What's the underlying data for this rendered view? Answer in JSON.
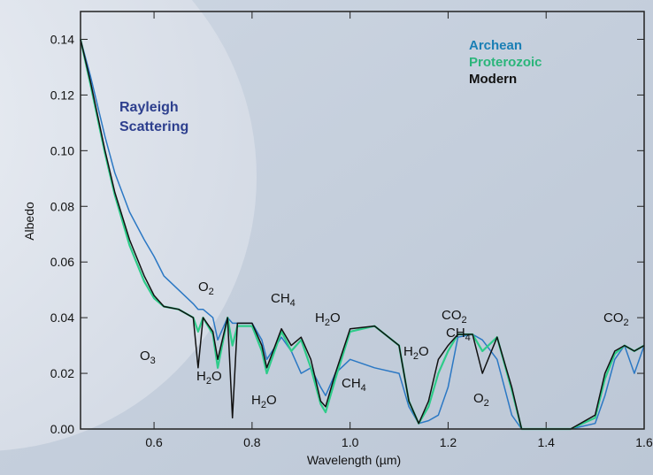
{
  "chart_data": {
    "type": "line",
    "x_label": "Wavelength (µm)",
    "y_label": "Albedo",
    "xlim": [
      0.45,
      1.6
    ],
    "ylim": [
      0,
      0.15
    ],
    "xticks": [
      0.6,
      0.8,
      {
        "value": 1,
        "label": "1.0"
      },
      1.2,
      1.4,
      1.6
    ],
    "yticks": [
      {
        "value": 0,
        "label": "0.00"
      },
      {
        "value": 0.02,
        "label": "0.02"
      },
      {
        "value": 0.04,
        "label": "0.04"
      },
      {
        "value": 0.06,
        "label": "0.06"
      },
      {
        "value": 0.08,
        "label": "0.08"
      },
      {
        "value": 0.1,
        "label": "0.10"
      },
      {
        "value": 0.12,
        "label": "0.12"
      },
      {
        "value": 0.14,
        "label": "0.14"
      }
    ],
    "legend_position": "upper right",
    "x": [
      0.45,
      0.47,
      0.5,
      0.52,
      0.55,
      0.58,
      0.6,
      0.62,
      0.65,
      0.68,
      0.69,
      0.7,
      0.72,
      0.73,
      0.75,
      0.76,
      0.77,
      0.8,
      0.82,
      0.83,
      0.86,
      0.88,
      0.9,
      0.92,
      0.94,
      0.95,
      0.97,
      1.0,
      1.05,
      1.1,
      1.12,
      1.14,
      1.16,
      1.18,
      1.2,
      1.22,
      1.25,
      1.27,
      1.3,
      1.33,
      1.35,
      1.4,
      1.45,
      1.5,
      1.52,
      1.54,
      1.56,
      1.58,
      1.6
    ],
    "series": [
      {
        "name": "Archean",
        "color": "#2b78c4",
        "label_color": "#1a7fb5",
        "values": [
          0.14,
          0.127,
          0.105,
          0.092,
          0.078,
          0.068,
          0.062,
          0.055,
          0.05,
          0.045,
          0.043,
          0.043,
          0.04,
          0.032,
          0.04,
          0.038,
          0.038,
          0.038,
          0.032,
          0.025,
          0.033,
          0.028,
          0.02,
          0.022,
          0.015,
          0.012,
          0.02,
          0.025,
          0.022,
          0.02,
          0.008,
          0.002,
          0.003,
          0.005,
          0.015,
          0.033,
          0.034,
          0.032,
          0.025,
          0.005,
          0,
          0,
          0,
          0.002,
          0.012,
          0.025,
          0.03,
          0.02,
          0.03
        ]
      },
      {
        "name": "Proterozoic",
        "color": "#2ecc8a",
        "label_color": "#2bb57a",
        "values": [
          0.14,
          0.124,
          0.099,
          0.084,
          0.066,
          0.053,
          0.047,
          0.044,
          0.043,
          0.04,
          0.035,
          0.04,
          0.034,
          0.022,
          0.04,
          0.03,
          0.037,
          0.037,
          0.028,
          0.02,
          0.035,
          0.028,
          0.032,
          0.022,
          0.009,
          0.006,
          0.018,
          0.035,
          0.037,
          0.03,
          0.01,
          0.002,
          0.008,
          0.02,
          0.028,
          0.034,
          0.034,
          0.028,
          0.033,
          0.014,
          0,
          0,
          0,
          0.004,
          0.018,
          0.027,
          0.03,
          0.028,
          0.03
        ]
      },
      {
        "name": "Modern",
        "color": "#111111",
        "label_color": "#111111",
        "values": [
          0.14,
          0.125,
          0.1,
          0.085,
          0.068,
          0.055,
          0.048,
          0.044,
          0.043,
          0.04,
          0.022,
          0.04,
          0.035,
          0.025,
          0.04,
          0.004,
          0.038,
          0.038,
          0.03,
          0.022,
          0.036,
          0.03,
          0.033,
          0.025,
          0.01,
          0.008,
          0.02,
          0.036,
          0.037,
          0.03,
          0.01,
          0.002,
          0.01,
          0.025,
          0.03,
          0.034,
          0.034,
          0.02,
          0.033,
          0.015,
          0,
          0,
          0,
          0.005,
          0.02,
          0.028,
          0.03,
          0.028,
          0.03
        ]
      }
    ],
    "rayleigh_label": [
      "Rayleigh",
      "Scattering"
    ],
    "annotations": [
      {
        "text": "O",
        "sub": "2"
      },
      {
        "text": "CH",
        "sub": "4"
      },
      {
        "text": "H",
        "sub": "2",
        "tail": "O"
      },
      {
        "text": "O",
        "sub": "3"
      },
      {
        "text": "H",
        "sub": "2",
        "tail": "O"
      },
      {
        "text": "H",
        "sub": "2",
        "tail": "O"
      },
      {
        "text": "CH",
        "sub": "4"
      },
      {
        "text": "CO",
        "sub": "2"
      },
      {
        "text": "CH",
        "sub": "4"
      },
      {
        "text": "H",
        "sub": "2",
        "tail": "O"
      },
      {
        "text": "O",
        "sub": "2"
      },
      {
        "text": "CO",
        "sub": "2"
      }
    ]
  }
}
